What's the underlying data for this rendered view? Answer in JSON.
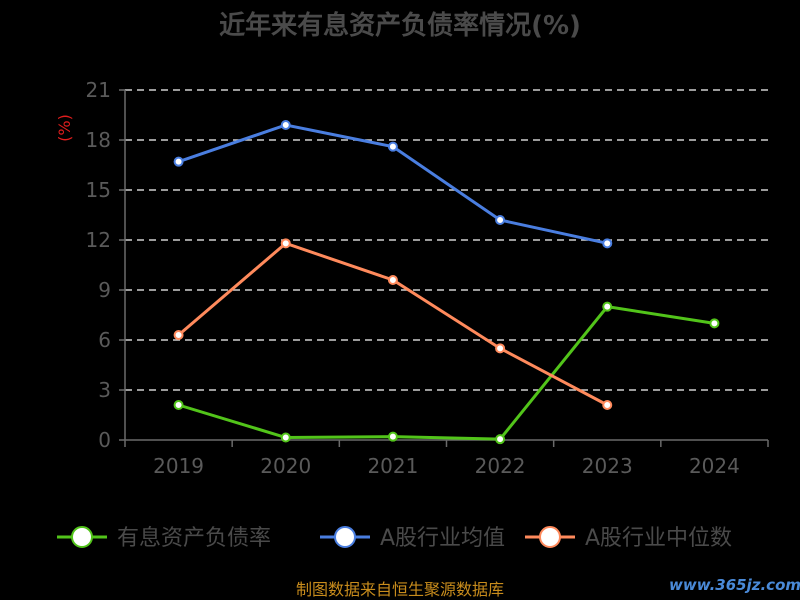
{
  "chart_data": {
    "type": "line",
    "title": "近年来有息资产负债率情况(%)",
    "ylabel": "(%)",
    "categories": [
      "2019",
      "2020",
      "2021",
      "2022",
      "2023",
      "2024"
    ],
    "ylim": [
      0,
      21
    ],
    "yticks": [
      0,
      3,
      6,
      9,
      12,
      15,
      18,
      21
    ],
    "grid": true,
    "legend": "bottom",
    "series": [
      {
        "name": "有息资产负债率",
        "color": "#52c41a",
        "values": [
          2.1,
          0.15,
          0.2,
          0.05,
          8.0,
          7.0
        ]
      },
      {
        "name": "A股行业均值",
        "color": "#4a7ee0",
        "values": [
          16.7,
          18.9,
          17.6,
          13.2,
          11.8,
          null
        ]
      },
      {
        "name": "A股行业中位数",
        "color": "#ff8a5c",
        "values": [
          6.3,
          11.8,
          9.6,
          5.5,
          2.1,
          null
        ]
      }
    ]
  },
  "footer": {
    "source": "制图数据来自恒生聚源数据库",
    "watermark": "www.365jz.com"
  }
}
